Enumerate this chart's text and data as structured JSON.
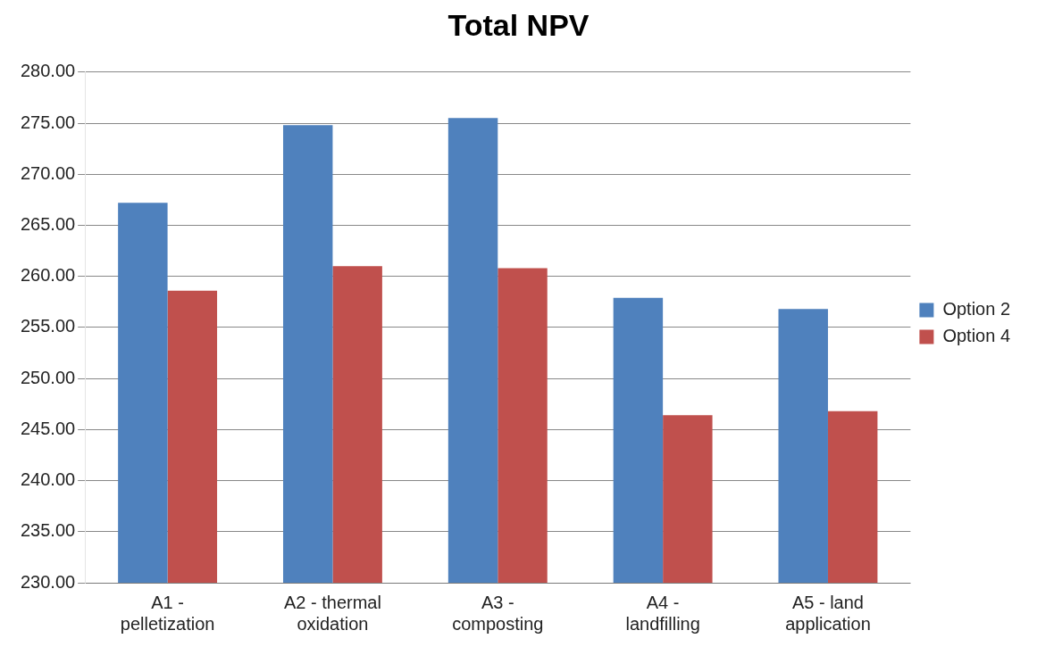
{
  "chart_data": {
    "type": "bar",
    "title": "Total NPV",
    "categories": [
      [
        "A1 -",
        "pelletization"
      ],
      [
        "A2 - thermal",
        "oxidation"
      ],
      [
        "A3 -",
        "composting"
      ],
      [
        "A4 -",
        "landfilling"
      ],
      [
        "A5 - land",
        "application"
      ]
    ],
    "series": [
      {
        "name": "Option 2",
        "color": "#4f81bd",
        "values": [
          267.2,
          274.8,
          275.5,
          257.9,
          256.8
        ]
      },
      {
        "name": "Option 4",
        "color": "#c0504d",
        "values": [
          258.6,
          261.0,
          260.8,
          246.4,
          246.8
        ]
      }
    ],
    "ylim": [
      230,
      280
    ],
    "yticks": [
      {
        "value": 230,
        "label": "230.00"
      },
      {
        "value": 235,
        "label": "235.00"
      },
      {
        "value": 240,
        "label": "240.00"
      },
      {
        "value": 245,
        "label": "245.00"
      },
      {
        "value": 250,
        "label": "250.00"
      },
      {
        "value": 255,
        "label": "255.00"
      },
      {
        "value": 260,
        "label": "260.00"
      },
      {
        "value": 265,
        "label": "265.00"
      },
      {
        "value": 270,
        "label": "270.00"
      },
      {
        "value": 275,
        "label": "275.00"
      },
      {
        "value": 280,
        "label": "280.00"
      }
    ],
    "grid": "y",
    "legend": "right"
  }
}
